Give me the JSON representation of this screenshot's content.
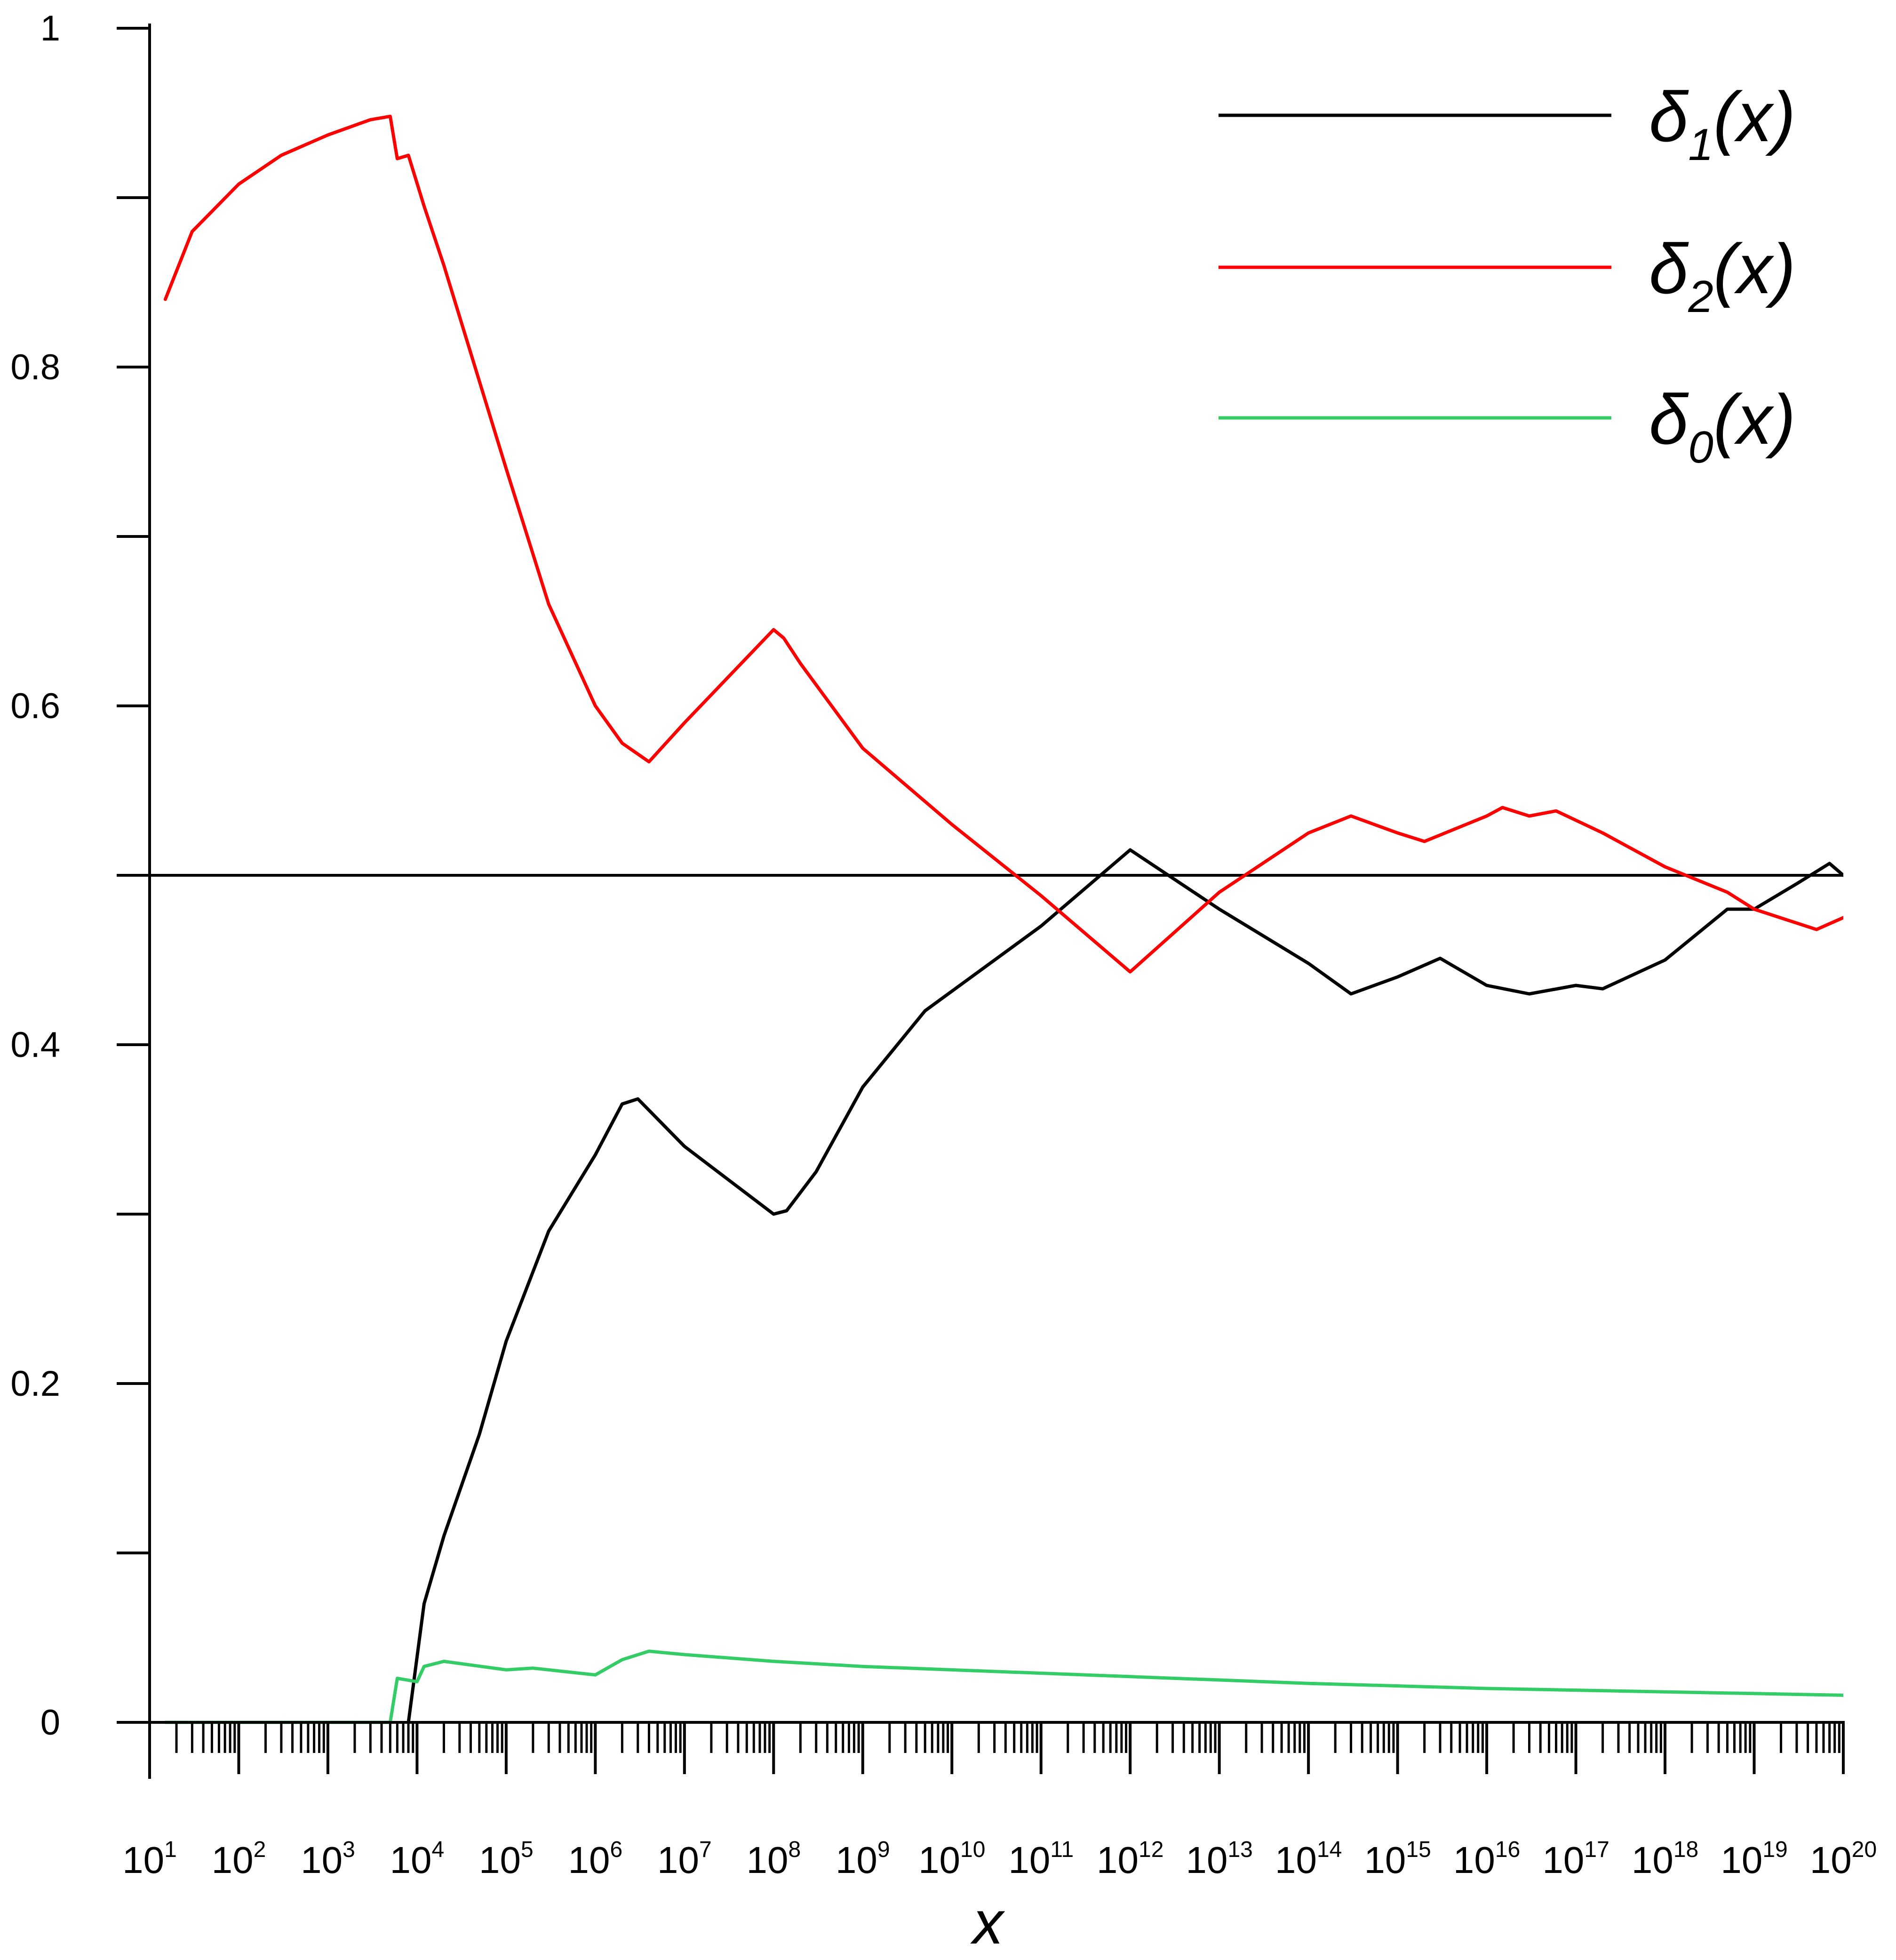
{
  "chart_data": {
    "type": "line",
    "xscale": "log",
    "xlabel": "x",
    "ylabel": "",
    "xlim": [
      10,
      1e+20
    ],
    "ylim": [
      0,
      1
    ],
    "yticks": [
      {
        "value": 0,
        "label": "0"
      },
      {
        "value": 0.1,
        "label": ""
      },
      {
        "value": 0.2,
        "label": "0.2"
      },
      {
        "value": 0.3,
        "label": ""
      },
      {
        "value": 0.4,
        "label": "0.4"
      },
      {
        "value": 0.5,
        "label": ""
      },
      {
        "value": 0.6,
        "label": "0.6"
      },
      {
        "value": 0.7,
        "label": ""
      },
      {
        "value": 0.8,
        "label": "0.8"
      },
      {
        "value": 0.9,
        "label": ""
      },
      {
        "value": 1,
        "label": "1"
      }
    ],
    "xticks": [
      {
        "exp": 1,
        "base": "10",
        "sup": "1"
      },
      {
        "exp": 2,
        "base": "10",
        "sup": "2"
      },
      {
        "exp": 3,
        "base": "10",
        "sup": "3"
      },
      {
        "exp": 4,
        "base": "10",
        "sup": "4"
      },
      {
        "exp": 5,
        "base": "10",
        "sup": "5"
      },
      {
        "exp": 6,
        "base": "10",
        "sup": "6"
      },
      {
        "exp": 7,
        "base": "10",
        "sup": "7"
      },
      {
        "exp": 8,
        "base": "10",
        "sup": "8"
      },
      {
        "exp": 9,
        "base": "10",
        "sup": "9"
      },
      {
        "exp": 10,
        "base": "10",
        "sup": "10"
      },
      {
        "exp": 11,
        "base": "10",
        "sup": "11"
      },
      {
        "exp": 12,
        "base": "10",
        "sup": "12"
      },
      {
        "exp": 13,
        "base": "10",
        "sup": "13"
      },
      {
        "exp": 14,
        "base": "10",
        "sup": "14"
      },
      {
        "exp": 15,
        "base": "10",
        "sup": "15"
      },
      {
        "exp": 16,
        "base": "10",
        "sup": "16"
      },
      {
        "exp": 17,
        "base": "10",
        "sup": "17"
      },
      {
        "exp": 18,
        "base": "10",
        "sup": "18"
      },
      {
        "exp": 19,
        "base": "10",
        "sup": "19"
      },
      {
        "exp": 20,
        "base": "10",
        "sup": "20"
      }
    ],
    "reference_line": {
      "y": 0.5,
      "color": "#000000"
    },
    "legend": {
      "position": "top-right"
    },
    "series": [
      {
        "name": "δ1(x)",
        "symbol": "δ",
        "subscript": "1",
        "suffix": "(x)",
        "color": "#000000",
        "points": [
          [
            8000,
            0
          ],
          [
            12000,
            0.07
          ],
          [
            20000,
            0.11
          ],
          [
            50000,
            0.17
          ],
          [
            100000,
            0.225
          ],
          [
            300000,
            0.29
          ],
          [
            1000000,
            0.335
          ],
          [
            2000000,
            0.365
          ],
          [
            3000000,
            0.368
          ],
          [
            10000000,
            0.34
          ],
          [
            100000000,
            0.3
          ],
          [
            140000000,
            0.302
          ],
          [
            300000000,
            0.325
          ],
          [
            1000000000,
            0.375
          ],
          [
            5000000000,
            0.42
          ],
          [
            100000000000.0,
            0.47
          ],
          [
            1000000000000.0,
            0.515
          ],
          [
            10000000000000.0,
            0.48
          ],
          [
            100000000000000.0,
            0.448
          ],
          [
            300000000000000.0,
            0.43
          ],
          [
            1000000000000000.0,
            0.44
          ],
          [
            3000000000000000.0,
            0.451
          ],
          [
            1e+16,
            0.435
          ],
          [
            3e+16,
            0.43
          ],
          [
            1e+17,
            0.435
          ],
          [
            2e+17,
            0.433
          ],
          [
            1e+18,
            0.45
          ],
          [
            5e+18,
            0.48
          ],
          [
            1e+19,
            0.48
          ],
          [
            3e+19,
            0.495
          ],
          [
            7e+19,
            0.507
          ],
          [
            1e+20,
            0.5
          ]
        ]
      },
      {
        "name": "δ2(x)",
        "symbol": "δ",
        "subscript": "2",
        "suffix": "(x)",
        "color": "#ff0000",
        "points": [
          [
            15,
            0.84
          ],
          [
            30,
            0.88
          ],
          [
            100,
            0.908
          ],
          [
            300,
            0.925
          ],
          [
            1000,
            0.937
          ],
          [
            3000,
            0.946
          ],
          [
            5000,
            0.948
          ],
          [
            6000,
            0.923
          ],
          [
            8000,
            0.925
          ],
          [
            12000,
            0.895
          ],
          [
            20000,
            0.86
          ],
          [
            100000,
            0.74
          ],
          [
            300000,
            0.66
          ],
          [
            1000000,
            0.6
          ],
          [
            2000000,
            0.578
          ],
          [
            4000000,
            0.567
          ],
          [
            10000000,
            0.59
          ],
          [
            100000000,
            0.645
          ],
          [
            130000000,
            0.64
          ],
          [
            200000000,
            0.625
          ],
          [
            1000000000,
            0.575
          ],
          [
            10000000000,
            0.53
          ],
          [
            100000000000.0,
            0.488
          ],
          [
            1000000000000.0,
            0.443
          ],
          [
            10000000000000.0,
            0.49
          ],
          [
            100000000000000.0,
            0.525
          ],
          [
            300000000000000.0,
            0.535
          ],
          [
            1000000000000000.0,
            0.525
          ],
          [
            2000000000000000.0,
            0.52
          ],
          [
            1e+16,
            0.535
          ],
          [
            1.5e+16,
            0.54
          ],
          [
            3e+16,
            0.535
          ],
          [
            6e+16,
            0.538
          ],
          [
            2e+17,
            0.525
          ],
          [
            1e+18,
            0.505
          ],
          [
            5e+18,
            0.49
          ],
          [
            1e+19,
            0.48
          ],
          [
            5e+19,
            0.468
          ],
          [
            1e+20,
            0.475
          ]
        ]
      },
      {
        "name": "δ0(x)",
        "symbol": "δ",
        "subscript": "0",
        "suffix": "(x)",
        "color": "#33cc66",
        "points": [
          [
            15,
            0
          ],
          [
            5000,
            0
          ],
          [
            6000,
            0.026
          ],
          [
            10000,
            0.024
          ],
          [
            12000,
            0.033
          ],
          [
            20000,
            0.036
          ],
          [
            100000,
            0.031
          ],
          [
            200000,
            0.032
          ],
          [
            1000000,
            0.028
          ],
          [
            2000000,
            0.037
          ],
          [
            4000000,
            0.042
          ],
          [
            10000000,
            0.04
          ],
          [
            100000000,
            0.036
          ],
          [
            1000000000,
            0.033
          ],
          [
            10000000000,
            0.031
          ],
          [
            1000000000000.0,
            0.027
          ],
          [
            100000000000000.0,
            0.023
          ],
          [
            1e+16,
            0.02
          ],
          [
            1e+18,
            0.018
          ],
          [
            1e+20,
            0.016
          ]
        ]
      }
    ]
  }
}
